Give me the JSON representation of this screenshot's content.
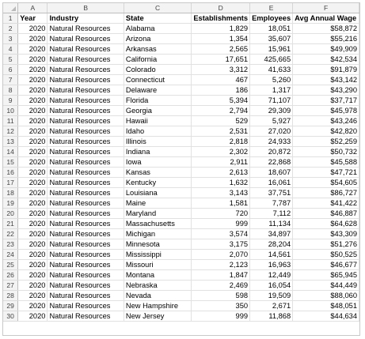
{
  "columns": [
    "A",
    "B",
    "C",
    "D",
    "E",
    "F"
  ],
  "header": [
    "Year",
    "Industry",
    "State",
    "Establishments",
    "Employees",
    "Avg Annual Wage"
  ],
  "rows": [
    [
      "2020",
      "Natural Resources",
      "Alabama",
      "1,829",
      "18,051",
      "$58,872"
    ],
    [
      "2020",
      "Natural Resources",
      "Arizona",
      "1,354",
      "35,607",
      "$55,216"
    ],
    [
      "2020",
      "Natural Resources",
      "Arkansas",
      "2,565",
      "15,961",
      "$49,909"
    ],
    [
      "2020",
      "Natural Resources",
      "California",
      "17,651",
      "425,665",
      "$42,534"
    ],
    [
      "2020",
      "Natural Resources",
      "Colorado",
      "3,312",
      "41,633",
      "$91,879"
    ],
    [
      "2020",
      "Natural Resources",
      "Connecticut",
      "467",
      "5,260",
      "$43,142"
    ],
    [
      "2020",
      "Natural Resources",
      "Delaware",
      "186",
      "1,317",
      "$43,290"
    ],
    [
      "2020",
      "Natural Resources",
      "Florida",
      "5,394",
      "71,107",
      "$37,717"
    ],
    [
      "2020",
      "Natural Resources",
      "Georgia",
      "2,794",
      "29,309",
      "$45,978"
    ],
    [
      "2020",
      "Natural Resources",
      "Hawaii",
      "529",
      "5,927",
      "$43,246"
    ],
    [
      "2020",
      "Natural Resources",
      "Idaho",
      "2,531",
      "27,020",
      "$42,820"
    ],
    [
      "2020",
      "Natural Resources",
      "Illinois",
      "2,818",
      "24,933",
      "$52,259"
    ],
    [
      "2020",
      "Natural Resources",
      "Indiana",
      "2,302",
      "20,872",
      "$50,732"
    ],
    [
      "2020",
      "Natural Resources",
      "Iowa",
      "2,911",
      "22,868",
      "$45,588"
    ],
    [
      "2020",
      "Natural Resources",
      "Kansas",
      "2,613",
      "18,607",
      "$47,721"
    ],
    [
      "2020",
      "Natural Resources",
      "Kentucky",
      "1,632",
      "16,061",
      "$54,605"
    ],
    [
      "2020",
      "Natural Resources",
      "Louisiana",
      "3,143",
      "37,751",
      "$86,727"
    ],
    [
      "2020",
      "Natural Resources",
      "Maine",
      "1,581",
      "7,787",
      "$41,422"
    ],
    [
      "2020",
      "Natural Resources",
      "Maryland",
      "720",
      "7,112",
      "$46,887"
    ],
    [
      "2020",
      "Natural Resources",
      "Massachusetts",
      "999",
      "11,134",
      "$64,628"
    ],
    [
      "2020",
      "Natural Resources",
      "Michigan",
      "3,574",
      "34,897",
      "$43,309"
    ],
    [
      "2020",
      "Natural Resources",
      "Minnesota",
      "3,175",
      "28,204",
      "$51,276"
    ],
    [
      "2020",
      "Natural Resources",
      "Mississippi",
      "2,070",
      "14,561",
      "$50,525"
    ],
    [
      "2020",
      "Natural Resources",
      "Missouri",
      "2,123",
      "16,963",
      "$46,677"
    ],
    [
      "2020",
      "Natural Resources",
      "Montana",
      "1,847",
      "12,449",
      "$65,945"
    ],
    [
      "2020",
      "Natural Resources",
      "Nebraska",
      "2,469",
      "16,054",
      "$44,449"
    ],
    [
      "2020",
      "Natural Resources",
      "Nevada",
      "598",
      "19,509",
      "$88,060"
    ],
    [
      "2020",
      "Natural Resources",
      "New Hampshire",
      "350",
      "2,671",
      "$48,051"
    ],
    [
      "2020",
      "Natural Resources",
      "New Jersey",
      "999",
      "11,868",
      "$44,634"
    ]
  ]
}
